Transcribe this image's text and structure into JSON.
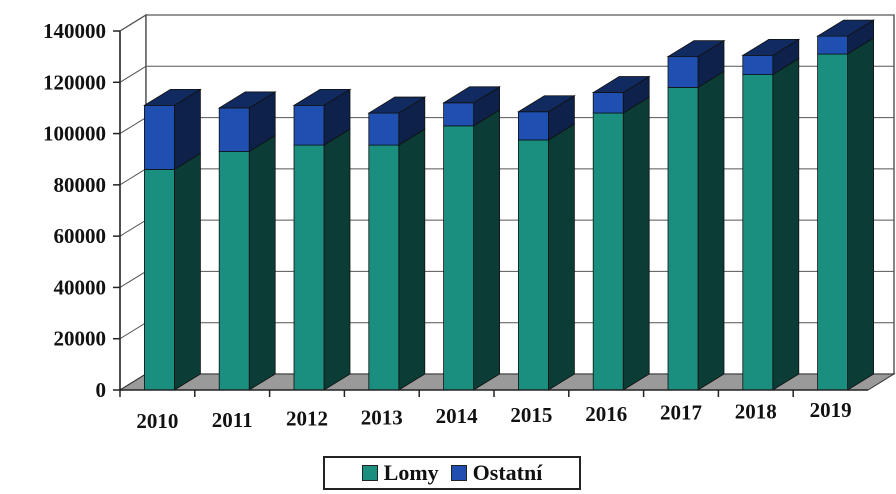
{
  "chart_data": {
    "type": "bar",
    "stacked": true,
    "three_d": true,
    "categories": [
      "2010",
      "2011",
      "2012",
      "2013",
      "2014",
      "2015",
      "2016",
      "2017",
      "2018",
      "2019"
    ],
    "series": [
      {
        "name": "Lomy",
        "color": "#1a8f7f",
        "values": [
          86000,
          93000,
          95500,
          95500,
          103000,
          97500,
          108000,
          118000,
          123000,
          131000
        ]
      },
      {
        "name": "Ostatní",
        "color": "#1f4fb0",
        "values": [
          25000,
          17000,
          15500,
          12500,
          9000,
          11000,
          8000,
          12000,
          7500,
          7000
        ]
      }
    ],
    "ylim": [
      0,
      140000
    ],
    "yticks": [
      "0",
      "20000",
      "40000",
      "60000",
      "80000",
      "100000",
      "120000",
      "140000"
    ],
    "grid": true,
    "legend_position": "bottom"
  }
}
